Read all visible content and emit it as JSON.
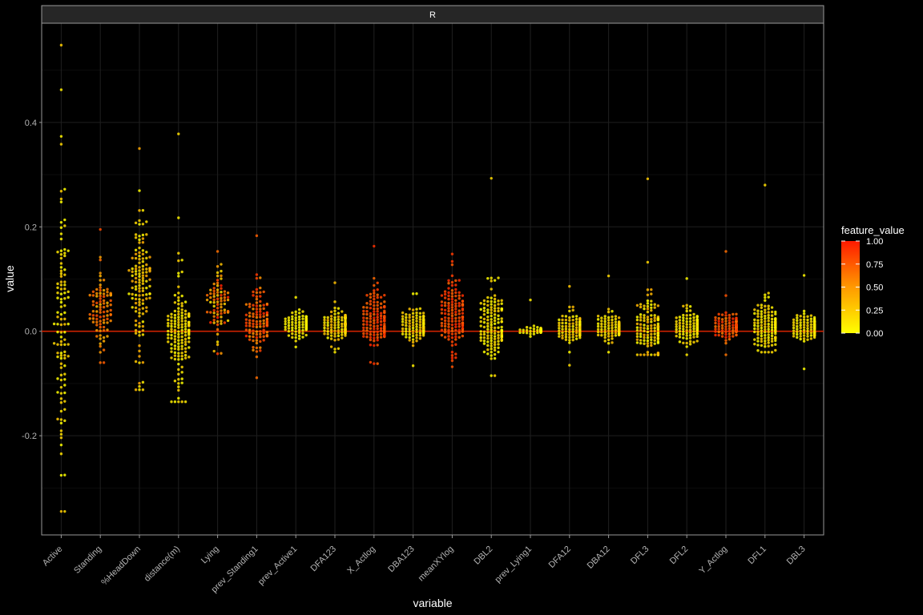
{
  "chart_data": {
    "type": "scatter",
    "facet": "R",
    "xlabel": "variable",
    "ylabel": "value",
    "ylim": [
      -0.39,
      0.59
    ],
    "y_ticks": [
      -0.2,
      0.0,
      0.2,
      0.4
    ],
    "y_tick_labels": [
      "-0.2",
      "0.0",
      "0.2",
      "0.4"
    ],
    "reference_line": {
      "y": 0.0,
      "color": "#cc2200"
    },
    "grid": true,
    "legend": {
      "title": "feature_value",
      "position": "right",
      "ticks": [
        0.0,
        0.25,
        0.5,
        0.75,
        1.0
      ],
      "tick_labels": [
        "0.00",
        "0.25",
        "0.50",
        "0.75",
        "1.00"
      ],
      "colors": [
        "#ffff00",
        "#ff0000"
      ]
    },
    "categories": [
      {
        "name": "Active",
        "center": 0.01,
        "sd": 0.2,
        "min": -0.345,
        "max": 0.548,
        "n": 110,
        "fv": 0.1,
        "fv_spread": 0.15
      },
      {
        "name": "Standing",
        "center": 0.04,
        "sd": 0.05,
        "min": -0.06,
        "max": 0.195,
        "n": 90,
        "fv": 0.55,
        "fv_spread": 0.25
      },
      {
        "name": "%HeadDown",
        "center": 0.09,
        "sd": 0.09,
        "min": -0.112,
        "max": 0.35,
        "n": 130,
        "fv": 0.2,
        "fv_spread": 0.2
      },
      {
        "name": "distance(m)",
        "center": 0.0,
        "sd": 0.07,
        "min": -0.135,
        "max": 0.378,
        "n": 150,
        "fv": 0.1,
        "fv_spread": 0.12
      },
      {
        "name": "Lying",
        "center": 0.05,
        "sd": 0.05,
        "min": -0.043,
        "max": 0.153,
        "n": 80,
        "fv": 0.55,
        "fv_spread": 0.45
      },
      {
        "name": "prev_Standing1",
        "center": 0.02,
        "sd": 0.04,
        "min": -0.089,
        "max": 0.183,
        "n": 110,
        "fv": 0.7,
        "fv_spread": 0.25
      },
      {
        "name": "prev_Active1",
        "center": 0.012,
        "sd": 0.015,
        "min": -0.03,
        "max": 0.065,
        "n": 110,
        "fv": 0.05,
        "fv_spread": 0.08
      },
      {
        "name": "DFA123",
        "center": 0.01,
        "sd": 0.02,
        "min": -0.04,
        "max": 0.093,
        "n": 120,
        "fv": 0.15,
        "fv_spread": 0.15
      },
      {
        "name": "X_Actlog",
        "center": 0.02,
        "sd": 0.035,
        "min": -0.062,
        "max": 0.163,
        "n": 140,
        "fv": 0.8,
        "fv_spread": 0.15
      },
      {
        "name": "DBA123",
        "center": 0.01,
        "sd": 0.02,
        "min": -0.066,
        "max": 0.072,
        "n": 130,
        "fv": 0.15,
        "fv_spread": 0.15
      },
      {
        "name": "meanXYlog",
        "center": 0.03,
        "sd": 0.04,
        "min": -0.068,
        "max": 0.148,
        "n": 140,
        "fv": 0.8,
        "fv_spread": 0.15
      },
      {
        "name": "DBL2",
        "center": 0.01,
        "sd": 0.05,
        "min": -0.085,
        "max": 0.293,
        "n": 140,
        "fv": 0.1,
        "fv_spread": 0.12
      },
      {
        "name": "prev_Lying1",
        "center": 0.001,
        "sd": 0.004,
        "min": -0.01,
        "max": 0.06,
        "n": 90,
        "fv": 0.05,
        "fv_spread": 0.05
      },
      {
        "name": "DFA12",
        "center": 0.008,
        "sd": 0.018,
        "min": -0.065,
        "max": 0.086,
        "n": 130,
        "fv": 0.15,
        "fv_spread": 0.15
      },
      {
        "name": "DBA12",
        "center": 0.005,
        "sd": 0.014,
        "min": -0.04,
        "max": 0.106,
        "n": 130,
        "fv": 0.15,
        "fv_spread": 0.15
      },
      {
        "name": "DFL3",
        "center": 0.005,
        "sd": 0.04,
        "min": -0.045,
        "max": 0.292,
        "n": 140,
        "fv": 0.15,
        "fv_spread": 0.2
      },
      {
        "name": "DFL2",
        "center": 0.01,
        "sd": 0.02,
        "min": -0.045,
        "max": 0.101,
        "n": 130,
        "fv": 0.1,
        "fv_spread": 0.12
      },
      {
        "name": "Y_Actlog",
        "center": 0.01,
        "sd": 0.015,
        "min": -0.045,
        "max": 0.153,
        "n": 120,
        "fv": 0.75,
        "fv_spread": 0.2
      },
      {
        "name": "DFL1",
        "center": 0.005,
        "sd": 0.03,
        "min": -0.04,
        "max": 0.28,
        "n": 140,
        "fv": 0.1,
        "fv_spread": 0.12
      },
      {
        "name": "DBL3",
        "center": 0.008,
        "sd": 0.018,
        "min": -0.072,
        "max": 0.107,
        "n": 130,
        "fv": 0.1,
        "fv_spread": 0.12
      }
    ]
  }
}
